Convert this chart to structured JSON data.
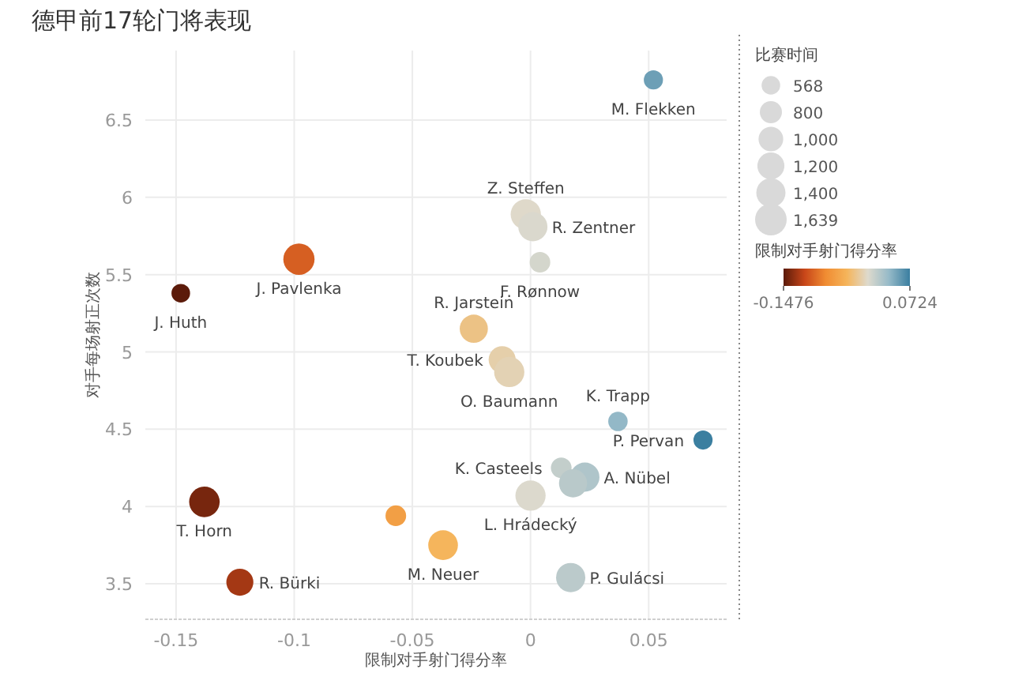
{
  "chart_data": {
    "type": "bubble",
    "title": "德甲前17轮门将表现",
    "xlabel": "限制对手射门得分率",
    "ylabel": "对手每场射正次数",
    "legend_title": "比赛时间",
    "clabel": "限制对手射门得分率",
    "xlim": [
      -0.163,
      0.083
    ],
    "xticks": [
      -0.15,
      -0.1,
      -0.05,
      0.0,
      0.05
    ],
    "ylim": [
      3.27,
      6.95
    ],
    "yticks": [
      3.5,
      4.0,
      4.5,
      5.0,
      5.5,
      6.0,
      6.5
    ],
    "grid": true,
    "x": [
      0.052,
      -0.002,
      0.001,
      0.004,
      -0.098,
      -0.148,
      -0.024,
      -0.012,
      -0.009,
      0.037,
      0.073,
      0.013,
      0.023,
      0.018,
      0.0,
      0.017,
      -0.037,
      -0.057,
      -0.138,
      -0.123
    ],
    "values": [
      6.76,
      5.89,
      5.81,
      5.58,
      5.6,
      5.38,
      5.15,
      4.95,
      4.87,
      4.55,
      4.43,
      4.25,
      4.19,
      4.15,
      4.07,
      3.54,
      3.75,
      3.94,
      4.03,
      3.51
    ],
    "sizes": [
      600,
      1500,
      1400,
      700,
      1600,
      568,
      1300,
      1200,
      1500,
      620,
      600,
      700,
      1400,
      1300,
      1500,
      1400,
      1450,
      700,
      1530,
      1200
    ],
    "cvalues": [
      0.052,
      -0.002,
      0.001,
      0.004,
      -0.098,
      -0.147,
      -0.024,
      -0.012,
      -0.009,
      0.037,
      0.072,
      0.013,
      0.023,
      0.018,
      0.0,
      0.017,
      -0.037,
      -0.057,
      -0.138,
      -0.123
    ],
    "size_legend": [
      {
        "value": 568,
        "label": "568"
      },
      {
        "value": 800,
        "label": "800"
      },
      {
        "value": 1000,
        "label": "1,000"
      },
      {
        "value": 1200,
        "label": "1,200"
      },
      {
        "value": 1400,
        "label": "1,400"
      },
      {
        "value": 1639,
        "label": "1,639"
      }
    ],
    "clim": [
      -0.1476,
      0.0724
    ],
    "cticks": [
      -0.1476,
      0.0724
    ],
    "annotations": [
      {
        "text": "M. Flekken",
        "x": 0.052,
        "y": 6.76
      },
      {
        "text": "Z. Steffen",
        "x": -0.002,
        "y": 5.89
      },
      {
        "text": "R. Zentner",
        "x": 0.001,
        "y": 5.81
      },
      {
        "text": "F. Rønnow",
        "x": 0.004,
        "y": 5.58
      },
      {
        "text": "J. Pavlenka",
        "x": -0.098,
        "y": 5.6
      },
      {
        "text": "J. Huth",
        "x": -0.148,
        "y": 5.38
      },
      {
        "text": "R. Jarstein",
        "x": -0.024,
        "y": 5.15
      },
      {
        "text": "T. Koubek",
        "x": -0.012,
        "y": 4.95
      },
      {
        "text": "O. Baumann",
        "x": -0.009,
        "y": 4.87
      },
      {
        "text": "K. Trapp",
        "x": 0.037,
        "y": 4.55
      },
      {
        "text": "P. Pervan",
        "x": 0.073,
        "y": 4.43
      },
      {
        "text": "K. Casteels",
        "x": 0.013,
        "y": 4.25
      },
      {
        "text": "A. Nübel",
        "x": 0.023,
        "y": 4.19
      },
      {
        "text": "L. Hrádecký",
        "x": 0.0,
        "y": 4.07
      },
      {
        "text": "P. Gulácsi",
        "x": 0.017,
        "y": 3.54
      },
      {
        "text": "M. Neuer",
        "x": -0.037,
        "y": 3.75
      },
      {
        "text": "T. Horn",
        "x": -0.138,
        "y": 4.03
      },
      {
        "text": "R. Bürki",
        "x": -0.123,
        "y": 3.51
      }
    ]
  }
}
